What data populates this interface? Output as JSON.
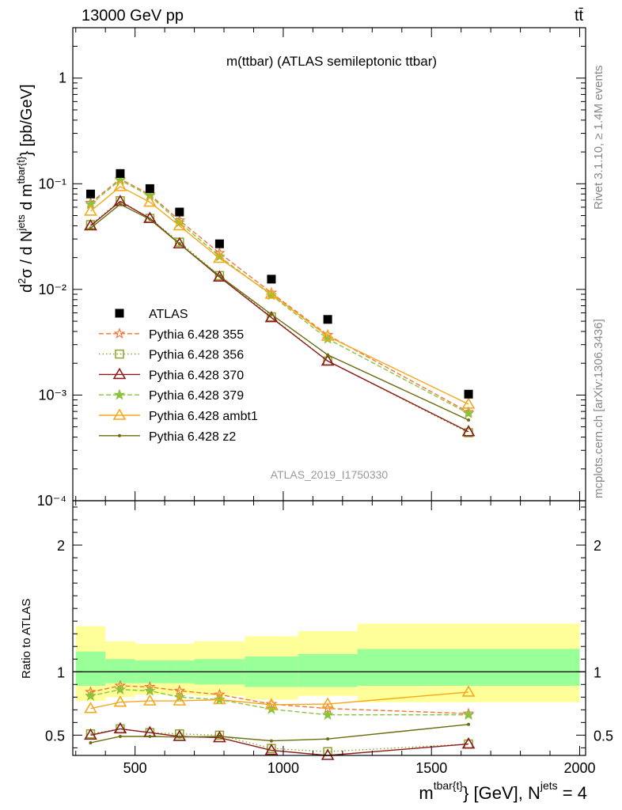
{
  "header": {
    "left": "13000 GeV pp",
    "right": "tt̄"
  },
  "side": {
    "rivet": "Rivet 3.1.10, ≥ 1.4M events",
    "mcplots": "mcplots.cern.ch [arXiv:1306.3436]"
  },
  "chart_data": {
    "type": "scatter",
    "title": "m(ttbar) (ATLAS semileptonic ttbar)",
    "analysis": "ATLAS_2019_I1750330",
    "xlabel": "m^{tbar{t}} [GeV], N^{jets} = 4",
    "xlabel_main": "m",
    "xlabel_sup": "tbar{t}",
    "xlabel_rest": "} [GeV], N",
    "xlabel_sup2": "jets",
    "xlabel_end": " = 4",
    "ylabel": "d²σ / d N^{jets} d m^{tbar{t}} [pb/GeV]",
    "ratio_ylabel": "Ratio to ATLAS",
    "xlim": [
      290,
      2020
    ],
    "ylim": [
      0.0001,
      3.0
    ],
    "yscale": "log",
    "ratio_ylim": [
      0.34,
      2.35
    ],
    "x_ticks": [
      "500",
      "1000",
      "1500",
      "2000"
    ],
    "x_tick_values": [
      500,
      1000,
      1500,
      2000
    ],
    "y_ticks": [
      "1",
      "10⁻¹",
      "10⁻²",
      "10⁻³",
      "10⁻⁴"
    ],
    "y_tick_values": [
      1,
      0.1,
      0.01,
      0.001,
      0.0001
    ],
    "ratio_ticks": [
      "0.5",
      "1",
      "2"
    ],
    "ratio_tick_values": [
      0.5,
      1,
      2
    ],
    "legend_position": "middle-left",
    "bins": [
      [
        300,
        400
      ],
      [
        400,
        500
      ],
      [
        500,
        600
      ],
      [
        600,
        700
      ],
      [
        700,
        870
      ],
      [
        870,
        1050
      ],
      [
        1050,
        1250
      ],
      [
        1250,
        2000
      ]
    ],
    "x": [
      350,
      450,
      550,
      650,
      785,
      960,
      1150,
      1625
    ],
    "data": {
      "name": "ATLAS",
      "values": [
        0.08,
        0.125,
        0.09,
        0.054,
        0.027,
        0.0125,
        0.0052,
        0.00102
      ]
    },
    "band_inner": [
      [
        0.89,
        1.16
      ],
      [
        0.91,
        1.1
      ],
      [
        0.91,
        1.09
      ],
      [
        0.91,
        1.09
      ],
      [
        0.9,
        1.1
      ],
      [
        0.88,
        1.12
      ],
      [
        0.88,
        1.14
      ],
      [
        0.89,
        1.18
      ]
    ],
    "band_outer": [
      [
        0.77,
        1.36
      ],
      [
        0.8,
        1.24
      ],
      [
        0.82,
        1.22
      ],
      [
        0.82,
        1.22
      ],
      [
        0.81,
        1.24
      ],
      [
        0.78,
        1.28
      ],
      [
        0.81,
        1.32
      ],
      [
        0.76,
        1.38
      ]
    ],
    "series": [
      {
        "name": "Pythia 6.428 355",
        "color": "#f37434",
        "dash": "6,3",
        "marker": "star-open",
        "values": [
          0.066,
          0.111,
          0.079,
          0.045,
          0.0221,
          0.0093,
          0.0037,
          0.00069
        ],
        "ratio": [
          0.84,
          0.89,
          0.88,
          0.85,
          0.82,
          0.745,
          0.71,
          0.67
        ]
      },
      {
        "name": "Pythia 6.428 356",
        "color": "#8aa624",
        "dash": "1.5,3",
        "marker": "square-open",
        "values": [
          0.041,
          0.069,
          0.047,
          0.028,
          0.0135,
          0.0055,
          0.0021,
          0.00044
        ],
        "ratio": [
          0.51,
          0.55,
          0.52,
          0.51,
          0.5,
          0.395,
          0.37,
          0.43
        ]
      },
      {
        "name": "Pythia 6.428 370",
        "color": "#8b1a1a",
        "dash": "",
        "marker": "triangle-open",
        "values": [
          0.04,
          0.068,
          0.047,
          0.027,
          0.0131,
          0.0054,
          0.0021,
          0.00045
        ],
        "ratio": [
          0.5,
          0.55,
          0.52,
          0.49,
          0.48,
          0.38,
          0.34,
          0.43
        ]
      },
      {
        "name": "Pythia 6.428 379",
        "color": "#8ac43f",
        "dash": "6,3",
        "marker": "star-filled",
        "values": [
          0.064,
          0.108,
          0.077,
          0.043,
          0.0205,
          0.0088,
          0.0034,
          0.00067
        ],
        "ratio": [
          0.81,
          0.86,
          0.85,
          0.8,
          0.78,
          0.705,
          0.66,
          0.66
        ]
      },
      {
        "name": "Pythia 6.428 ambt1",
        "color": "#f5a81c",
        "dash": "",
        "marker": "triangle-open",
        "values": [
          0.055,
          0.094,
          0.067,
          0.04,
          0.0197,
          0.009,
          0.0036,
          0.00082
        ],
        "ratio": [
          0.71,
          0.76,
          0.77,
          0.77,
          0.78,
          0.74,
          0.745,
          0.84
        ]
      },
      {
        "name": "Pythia 6.428 z2",
        "color": "#6b6b10",
        "dash": "",
        "marker": "dot",
        "values": [
          0.038,
          0.064,
          0.046,
          0.027,
          0.0134,
          0.0058,
          0.0024,
          0.00058
        ],
        "ratio": [
          0.44,
          0.49,
          0.49,
          0.485,
          0.49,
          0.455,
          0.47,
          0.585
        ]
      }
    ]
  }
}
